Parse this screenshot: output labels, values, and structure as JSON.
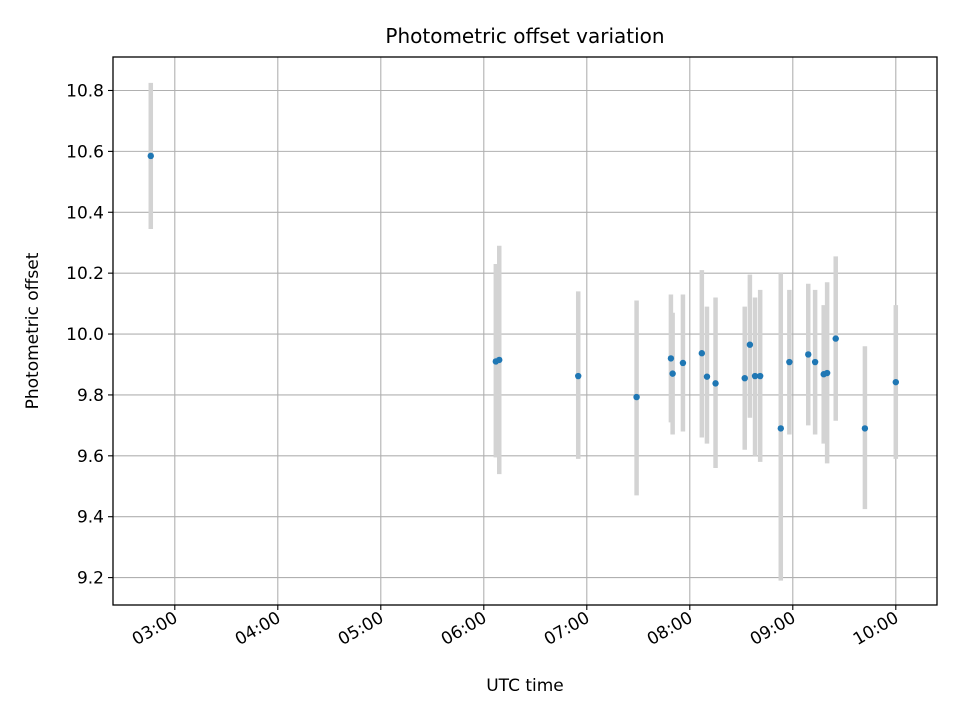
{
  "chart_data": {
    "type": "scatter",
    "title": "Photometric offset variation",
    "xlabel": "UTC time",
    "ylabel": "Photometric offset",
    "grid": true,
    "legend": "none",
    "x_scale": "time",
    "xlim": [
      "02:24",
      "10:24"
    ],
    "ylim": [
      9.11,
      10.91
    ],
    "x_ticks": [
      "03:00",
      "04:00",
      "05:00",
      "06:00",
      "07:00",
      "08:00",
      "09:00",
      "10:00"
    ],
    "y_ticks": [
      9.2,
      9.4,
      9.6,
      9.8,
      10.0,
      10.2,
      10.4,
      10.6,
      10.8
    ],
    "y_tick_labels": [
      "9.2",
      "9.4",
      "9.6",
      "9.8",
      "10.0",
      "10.2",
      "10.4",
      "10.6",
      "10.8"
    ],
    "colors": {
      "point": "#1f77b4",
      "errorbar": "#d3d3d3",
      "grid": "#b0b0b0"
    },
    "series": [
      {
        "points": [
          {
            "t": "02:46",
            "y": 10.585,
            "lo": 10.345,
            "hi": 10.825
          },
          {
            "t": "06:07",
            "y": 9.91,
            "lo": 9.595,
            "hi": 10.23
          },
          {
            "t": "06:09",
            "y": 9.915,
            "lo": 9.54,
            "hi": 10.29
          },
          {
            "t": "06:55",
            "y": 9.862,
            "lo": 9.59,
            "hi": 10.14
          },
          {
            "t": "07:29",
            "y": 9.793,
            "lo": 9.47,
            "hi": 10.11
          },
          {
            "t": "07:49",
            "y": 9.92,
            "lo": 9.71,
            "hi": 10.13
          },
          {
            "t": "07:50",
            "y": 9.87,
            "lo": 9.67,
            "hi": 10.07
          },
          {
            "t": "07:56",
            "y": 9.905,
            "lo": 9.68,
            "hi": 10.13
          },
          {
            "t": "08:07",
            "y": 9.937,
            "lo": 9.66,
            "hi": 10.21
          },
          {
            "t": "08:10",
            "y": 9.86,
            "lo": 9.64,
            "hi": 10.09
          },
          {
            "t": "08:15",
            "y": 9.838,
            "lo": 9.56,
            "hi": 10.12
          },
          {
            "t": "08:32",
            "y": 9.855,
            "lo": 9.62,
            "hi": 10.09
          },
          {
            "t": "08:35",
            "y": 9.965,
            "lo": 9.725,
            "hi": 10.195
          },
          {
            "t": "08:38",
            "y": 9.862,
            "lo": 9.6,
            "hi": 10.12
          },
          {
            "t": "08:41",
            "y": 9.862,
            "lo": 9.58,
            "hi": 10.145
          },
          {
            "t": "08:53",
            "y": 9.69,
            "lo": 9.19,
            "hi": 10.2
          },
          {
            "t": "08:58",
            "y": 9.908,
            "lo": 9.67,
            "hi": 10.145
          },
          {
            "t": "09:09",
            "y": 9.933,
            "lo": 9.7,
            "hi": 10.165
          },
          {
            "t": "09:13",
            "y": 9.908,
            "lo": 9.67,
            "hi": 10.145
          },
          {
            "t": "09:18",
            "y": 9.868,
            "lo": 9.64,
            "hi": 10.095
          },
          {
            "t": "09:20",
            "y": 9.872,
            "lo": 9.575,
            "hi": 10.17
          },
          {
            "t": "09:25",
            "y": 9.985,
            "lo": 9.715,
            "hi": 10.255
          },
          {
            "t": "09:42",
            "y": 9.69,
            "lo": 9.425,
            "hi": 9.96
          },
          {
            "t": "10:00",
            "y": 9.842,
            "lo": 9.59,
            "hi": 10.095
          }
        ]
      }
    ]
  }
}
